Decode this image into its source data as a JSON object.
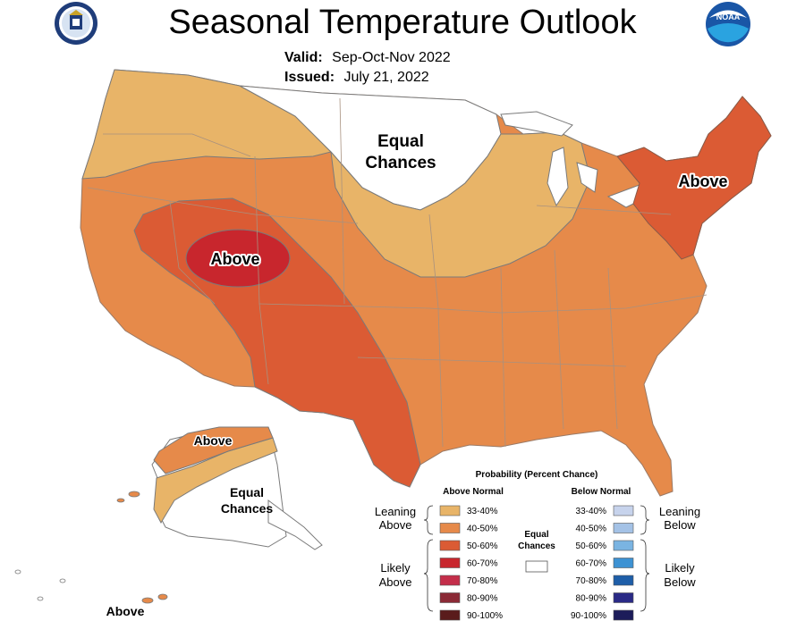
{
  "header": {
    "title": "Seasonal Temperature Outlook",
    "valid_label": "Valid:",
    "valid_value": "Sep-Oct-Nov 2022",
    "issued_label": "Issued:",
    "issued_value": "July 21, 2022",
    "left_logo": "commerce-seal-icon",
    "right_logo": "noaa-logo-icon",
    "right_logo_text": "NOAA"
  },
  "map": {
    "labels": {
      "equal_chances_main_1": "Equal",
      "equal_chances_main_2": "Chances",
      "above_west": "Above",
      "above_northeast": "Above",
      "above_alaska": "Above",
      "alaska_equal_1": "Equal",
      "alaska_equal_2": "Chances",
      "above_hawaii": "Above"
    }
  },
  "legend": {
    "title": "Probability (Percent Chance)",
    "above_header": "Above Normal",
    "below_header": "Below Normal",
    "equal_label_1": "Equal",
    "equal_label_2": "Chances",
    "leaning_above_1": "Leaning",
    "leaning_above_2": "Above",
    "likely_above_1": "Likely",
    "likely_above_2": "Above",
    "leaning_below_1": "Leaning",
    "leaning_below_2": "Below",
    "likely_below_1": "Likely",
    "likely_below_2": "Below",
    "above_bins": [
      {
        "label": "33-40%",
        "color": "#e8b468"
      },
      {
        "label": "40-50%",
        "color": "#e68a4a"
      },
      {
        "label": "50-60%",
        "color": "#db5b34"
      },
      {
        "label": "60-70%",
        "color": "#c8262d"
      },
      {
        "label": "70-80%",
        "color": "#c42e4a"
      },
      {
        "label": "80-90%",
        "color": "#8b2a36"
      },
      {
        "label": "90-100%",
        "color": "#5a1c1c"
      }
    ],
    "below_bins": [
      {
        "label": "33-40%",
        "color": "#c7d3ec"
      },
      {
        "label": "40-50%",
        "color": "#a4c2e6"
      },
      {
        "label": "50-60%",
        "color": "#7ab4e2"
      },
      {
        "label": "60-70%",
        "color": "#3d92d3"
      },
      {
        "label": "70-80%",
        "color": "#1e5ea8"
      },
      {
        "label": "80-90%",
        "color": "#2a2a86"
      },
      {
        "label": "90-100%",
        "color": "#1c1c5a"
      }
    ]
  }
}
